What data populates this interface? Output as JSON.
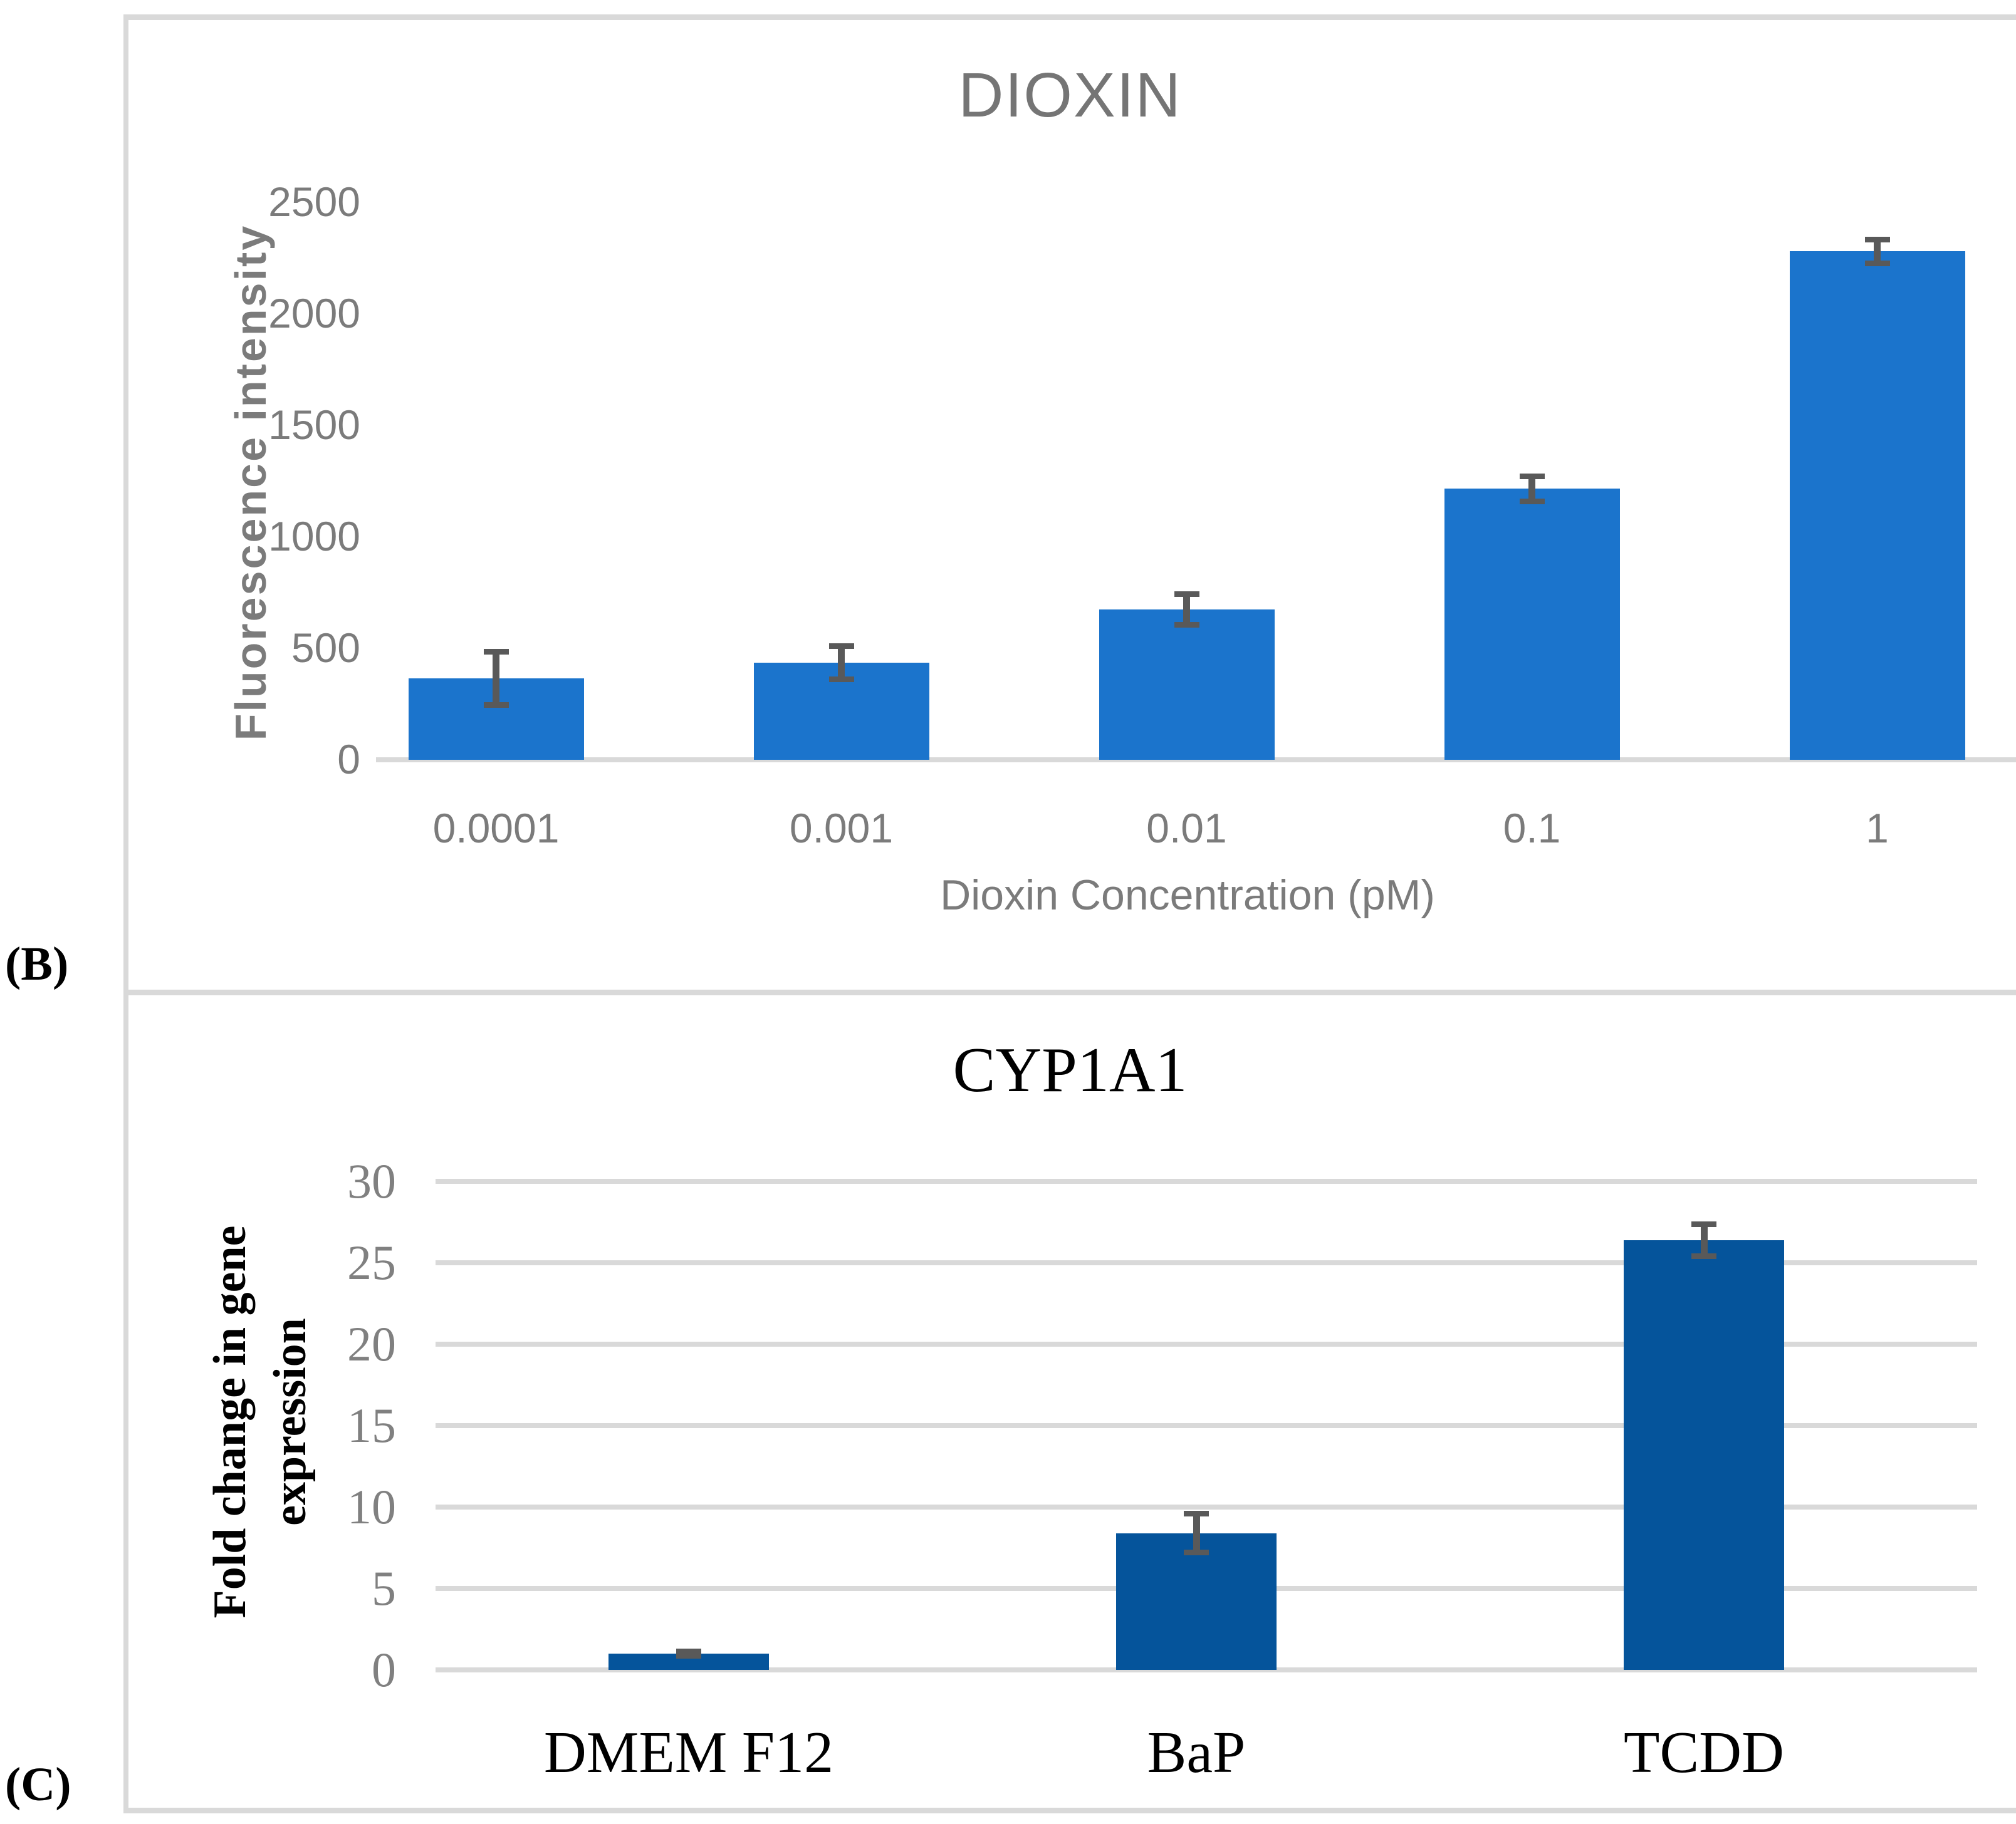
{
  "figure": {
    "panel_b_label": "(B)",
    "panel_c_label": "(C)"
  },
  "chart_data": [
    {
      "type": "bar",
      "title": "DIOXIN",
      "ylabel": "Fluorescence intensity",
      "xlabel": "Dioxin Concentration (pM)",
      "categories": [
        "0.0001",
        "0.001",
        "0.01",
        "0.1",
        "1"
      ],
      "values": [
        365,
        435,
        675,
        1215,
        2280
      ],
      "errors": [
        120,
        75,
        70,
        58,
        55
      ],
      "ylim": [
        0,
        2500
      ],
      "yticks": [
        0,
        500,
        1000,
        1500,
        2000,
        2500
      ],
      "grid": false,
      "bar_color": "#1B74CC",
      "error_color": "#595959",
      "axis_color": "#D9D9D9",
      "tick_color": "#7B7B7B",
      "category_color": "#7B7B7B",
      "title_color": "#757575"
    },
    {
      "type": "bar",
      "title": "CYP1A1",
      "ylabel": "Fold change in gene expression",
      "ylabel_lines": "Fold change in gene\nexpression",
      "categories": [
        "DMEM F12",
        "BaP",
        "TCDD"
      ],
      "values": [
        1,
        8.4,
        26.4
      ],
      "errors": [
        0.15,
        1.2,
        1
      ],
      "ylim": [
        0,
        30
      ],
      "yticks": [
        0,
        5,
        10,
        15,
        20,
        25,
        30
      ],
      "grid": true,
      "bar_color": "#05549B",
      "error_color": "#595959",
      "grid_color": "#D9D9D9",
      "tick_color": "#808080",
      "category_color": "#000000",
      "title_color": "#000000"
    }
  ]
}
